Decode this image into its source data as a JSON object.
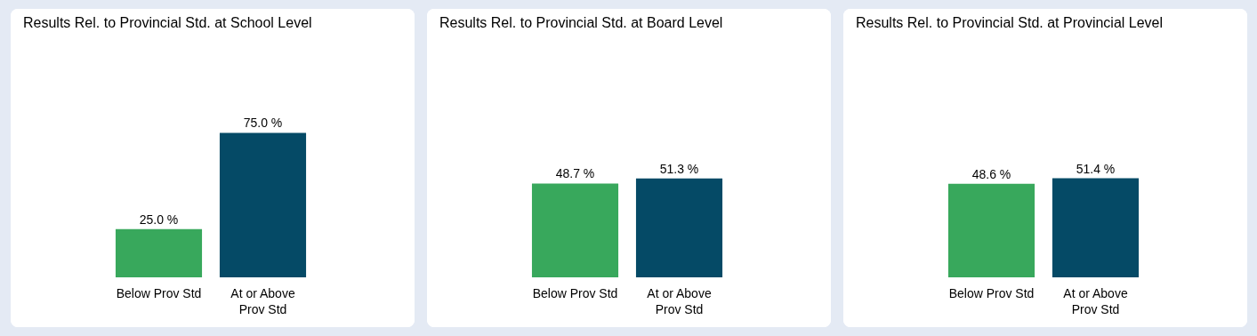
{
  "chart_data": [
    {
      "type": "bar",
      "title": "Results Rel. to Provincial Std. at School Level",
      "categories": [
        "Below Prov Std",
        "At or Above\nProv Std"
      ],
      "values": [
        25.0,
        75.0
      ],
      "colors": [
        "#38a85c",
        "#054a66"
      ],
      "value_labels": [
        "25.0 %",
        "75.0 %"
      ],
      "legend": false,
      "grid": false
    },
    {
      "type": "bar",
      "title": "Results Rel. to Provincial Std. at Board Level",
      "categories": [
        "Below Prov Std",
        "At or Above\nProv Std"
      ],
      "values": [
        48.7,
        51.3
      ],
      "colors": [
        "#38a85c",
        "#054a66"
      ],
      "value_labels": [
        "48.7 %",
        "51.3 %"
      ],
      "legend": false,
      "grid": false
    },
    {
      "type": "bar",
      "title": "Results Rel. to Provincial Std. at Provincial Level",
      "categories": [
        "Below Prov Std",
        "At or Above\nProv Std"
      ],
      "values": [
        48.6,
        51.4
      ],
      "colors": [
        "#38a85c",
        "#054a66"
      ],
      "value_labels": [
        "48.6 %",
        "51.4 %"
      ],
      "legend": false,
      "grid": false
    }
  ]
}
